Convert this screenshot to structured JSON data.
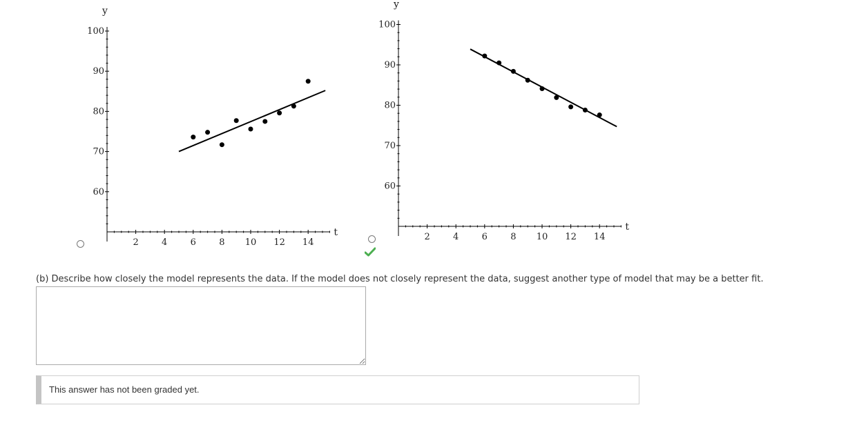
{
  "charts": [
    {
      "id": "left",
      "type": "scatter",
      "x_axis_name": "t",
      "y_axis_name": "y",
      "x_ticks": [
        2,
        4,
        6,
        8,
        10,
        12,
        14
      ],
      "y_ticks": [
        60,
        70,
        80,
        90,
        100
      ],
      "xlim": [
        0,
        15.5
      ],
      "ylim": [
        50,
        100
      ],
      "points": [
        {
          "x": 6,
          "y": 73.6
        },
        {
          "x": 7,
          "y": 74.8
        },
        {
          "x": 8,
          "y": 71.7
        },
        {
          "x": 9,
          "y": 77.7
        },
        {
          "x": 10,
          "y": 75.6
        },
        {
          "x": 11,
          "y": 77.5
        },
        {
          "x": 12,
          "y": 79.6
        },
        {
          "x": 13,
          "y": 81.3
        },
        {
          "x": 14,
          "y": 87.5
        }
      ],
      "fit_line": [
        {
          "x": 5,
          "y": 70.0
        },
        {
          "x": 15.2,
          "y": 85.2
        }
      ]
    },
    {
      "id": "right",
      "type": "scatter",
      "x_axis_name": "t",
      "y_axis_name": "y",
      "x_ticks": [
        2,
        4,
        6,
        8,
        10,
        12,
        14
      ],
      "y_ticks": [
        60,
        70,
        80,
        90,
        100
      ],
      "xlim": [
        0,
        15.5
      ],
      "ylim": [
        50,
        100
      ],
      "points": [
        {
          "x": 6,
          "y": 92.2
        },
        {
          "x": 7,
          "y": 90.5
        },
        {
          "x": 8,
          "y": 88.4
        },
        {
          "x": 9,
          "y": 86.2
        },
        {
          "x": 10,
          "y": 84.1
        },
        {
          "x": 11,
          "y": 81.9
        },
        {
          "x": 12,
          "y": 79.6
        },
        {
          "x": 13,
          "y": 78.8
        },
        {
          "x": 14,
          "y": 77.6
        }
      ],
      "fit_line": [
        {
          "x": 5,
          "y": 93.9
        },
        {
          "x": 15.2,
          "y": 74.7
        }
      ]
    }
  ],
  "options": {
    "a_selected": false,
    "b_selected": false,
    "b_marked_correct": true
  },
  "part_b": {
    "prompt": "(b) Describe how closely the model represents the data. If the model does not closely represent the data, suggest another type of model that may be a better fit.",
    "answer_value": "",
    "grade_note": "This answer has not been graded yet."
  },
  "colors": {
    "check": "#4caf50",
    "note_border": "#c4c4c4"
  }
}
